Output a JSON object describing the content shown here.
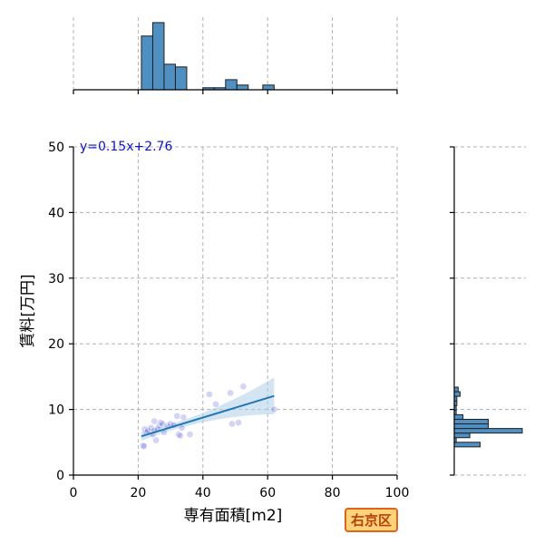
{
  "chart_data": {
    "type": "scatter",
    "xlabel": "専有面積[m2]",
    "ylabel": "賃料[万円]",
    "xlim": [
      0,
      100
    ],
    "ylim": [
      0,
      50
    ],
    "xticks": [
      0,
      20,
      40,
      60,
      80,
      100
    ],
    "yticks": [
      0,
      10,
      20,
      30,
      40,
      50
    ],
    "grid": true,
    "colors": {
      "points": "#3a3ad0",
      "fit_line": "#1f77b4",
      "band": "#aecde9",
      "hist": "#4f8fc2"
    },
    "regression": {
      "equation": "y=0.15x+2.76",
      "slope": 0.15,
      "intercept": 2.76,
      "x_range": [
        21,
        62
      ]
    },
    "points": [
      {
        "x": 21.5,
        "y": 4.5
      },
      {
        "x": 21.8,
        "y": 4.4
      },
      {
        "x": 22.0,
        "y": 7.0
      },
      {
        "x": 22.5,
        "y": 6.5
      },
      {
        "x": 23.0,
        "y": 6.8
      },
      {
        "x": 24.0,
        "y": 7.2
      },
      {
        "x": 24.5,
        "y": 6.2
      },
      {
        "x": 25.0,
        "y": 8.2
      },
      {
        "x": 25.0,
        "y": 6.8
      },
      {
        "x": 25.5,
        "y": 5.3
      },
      {
        "x": 26.0,
        "y": 7.0
      },
      {
        "x": 26.5,
        "y": 7.5
      },
      {
        "x": 27.0,
        "y": 8.0
      },
      {
        "x": 27.5,
        "y": 7.8
      },
      {
        "x": 28.0,
        "y": 6.5
      },
      {
        "x": 29.0,
        "y": 7.5
      },
      {
        "x": 30.0,
        "y": 7.8
      },
      {
        "x": 31.0,
        "y": 7.6
      },
      {
        "x": 32.0,
        "y": 9.0
      },
      {
        "x": 32.5,
        "y": 6.2
      },
      {
        "x": 33.0,
        "y": 6.0
      },
      {
        "x": 33.5,
        "y": 7.2
      },
      {
        "x": 34.0,
        "y": 8.8
      },
      {
        "x": 36.0,
        "y": 6.2
      },
      {
        "x": 42.0,
        "y": 12.3
      },
      {
        "x": 44.0,
        "y": 10.8
      },
      {
        "x": 48.5,
        "y": 12.5
      },
      {
        "x": 49.0,
        "y": 7.8
      },
      {
        "x": 51.0,
        "y": 8.0
      },
      {
        "x": 52.5,
        "y": 13.5
      },
      {
        "x": 62.0,
        "y": 10.0
      }
    ],
    "marginal_x": {
      "bins": [
        {
          "from": 21,
          "to": 24.5,
          "count": 8
        },
        {
          "from": 24.5,
          "to": 28,
          "count": 10
        },
        {
          "from": 28,
          "to": 31.5,
          "count": 3.8
        },
        {
          "from": 31.5,
          "to": 35,
          "count": 3.4
        },
        {
          "from": 40,
          "to": 43.5,
          "count": 0.3
        },
        {
          "from": 43.5,
          "to": 47,
          "count": 0.3
        },
        {
          "from": 47,
          "to": 50.5,
          "count": 1.5
        },
        {
          "from": 50.5,
          "to": 54,
          "count": 0.7
        },
        {
          "from": 58.5,
          "to": 62,
          "count": 0.7
        }
      ],
      "max": 10.8
    },
    "marginal_y": {
      "bins": [
        {
          "from": 4.3,
          "to": 5.0,
          "count": 8
        },
        {
          "from": 5.0,
          "to": 5.7,
          "count": 0.6
        },
        {
          "from": 5.7,
          "to": 6.4,
          "count": 4.8
        },
        {
          "from": 6.4,
          "to": 7.1,
          "count": 21
        },
        {
          "from": 7.1,
          "to": 7.8,
          "count": 10.5
        },
        {
          "from": 7.8,
          "to": 8.5,
          "count": 10.5
        },
        {
          "from": 8.5,
          "to": 9.2,
          "count": 2.7
        },
        {
          "from": 9.2,
          "to": 9.9,
          "count": 0.6
        },
        {
          "from": 9.9,
          "to": 10.6,
          "count": 0.6
        },
        {
          "from": 10.6,
          "to": 11.3,
          "count": 0.8
        },
        {
          "from": 11.3,
          "to": 12.0,
          "count": 0.8
        },
        {
          "from": 12.0,
          "to": 12.7,
          "count": 1.8
        },
        {
          "from": 12.7,
          "to": 13.4,
          "count": 1.2
        }
      ],
      "max": 21
    },
    "ward": "右京区"
  }
}
